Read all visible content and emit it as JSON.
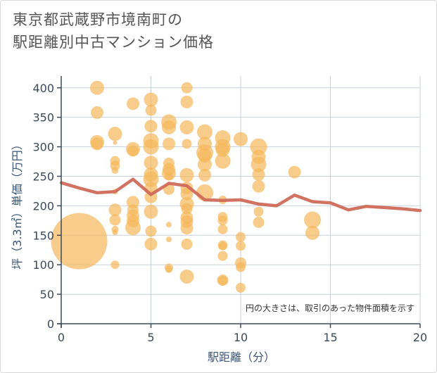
{
  "chart_data": {
    "type": "scatter",
    "title_line1": "東京都武蔵野市境南町の",
    "title_line2": "駅距離別中古マンション価格",
    "xlabel": "駅距離（分）",
    "ylabel": "坪（3.3㎡）単価（万円）",
    "note": "円の大きさは、取引のあった物件面積を示す",
    "xlim": [
      0,
      20
    ],
    "ylim": [
      0,
      420
    ],
    "xticks": [
      0,
      5,
      10,
      15,
      20
    ],
    "yticks": [
      0,
      50,
      100,
      150,
      200,
      250,
      300,
      350,
      400
    ],
    "grid": true,
    "colors": {
      "bubble": "#f5b85a",
      "line": "#d06a5a",
      "grid": "#c8d2de",
      "axis": "#3c4a5a"
    },
    "bubbles": [
      {
        "x": 1,
        "y": 140,
        "s": 40
      },
      {
        "x": 2,
        "y": 400,
        "s": 10
      },
      {
        "x": 2,
        "y": 358,
        "s": 9
      },
      {
        "x": 2,
        "y": 308,
        "s": 10
      },
      {
        "x": 2,
        "y": 305,
        "s": 9
      },
      {
        "x": 3,
        "y": 322,
        "s": 10
      },
      {
        "x": 3,
        "y": 307,
        "s": 3
      },
      {
        "x": 3,
        "y": 276,
        "s": 7
      },
      {
        "x": 3,
        "y": 268,
        "s": 7
      },
      {
        "x": 3,
        "y": 260,
        "s": 5
      },
      {
        "x": 3,
        "y": 224,
        "s": 4
      },
      {
        "x": 3,
        "y": 193,
        "s": 9
      },
      {
        "x": 3,
        "y": 176,
        "s": 8
      },
      {
        "x": 3,
        "y": 160,
        "s": 5
      },
      {
        "x": 3,
        "y": 155,
        "s": 4
      },
      {
        "x": 3,
        "y": 100,
        "s": 6
      },
      {
        "x": 4,
        "y": 373,
        "s": 9
      },
      {
        "x": 4,
        "y": 296,
        "s": 10
      },
      {
        "x": 4,
        "y": 293,
        "s": 8
      },
      {
        "x": 4,
        "y": 206,
        "s": 9
      },
      {
        "x": 4,
        "y": 193,
        "s": 8
      },
      {
        "x": 4,
        "y": 183,
        "s": 9
      },
      {
        "x": 4,
        "y": 174,
        "s": 9
      },
      {
        "x": 4,
        "y": 163,
        "s": 11
      },
      {
        "x": 5,
        "y": 380,
        "s": 10
      },
      {
        "x": 5,
        "y": 362,
        "s": 8
      },
      {
        "x": 5,
        "y": 335,
        "s": 9
      },
      {
        "x": 5,
        "y": 310,
        "s": 11
      },
      {
        "x": 5,
        "y": 300,
        "s": 11
      },
      {
        "x": 5,
        "y": 273,
        "s": 10
      },
      {
        "x": 5,
        "y": 253,
        "s": 10
      },
      {
        "x": 5,
        "y": 245,
        "s": 11
      },
      {
        "x": 5,
        "y": 230,
        "s": 9
      },
      {
        "x": 5,
        "y": 215,
        "s": 9
      },
      {
        "x": 5,
        "y": 190,
        "s": 10
      },
      {
        "x": 5,
        "y": 157,
        "s": 8
      },
      {
        "x": 5,
        "y": 135,
        "s": 9
      },
      {
        "x": 6,
        "y": 342,
        "s": 11
      },
      {
        "x": 6,
        "y": 333,
        "s": 10
      },
      {
        "x": 6,
        "y": 305,
        "s": 9
      },
      {
        "x": 6,
        "y": 272,
        "s": 8
      },
      {
        "x": 6,
        "y": 262,
        "s": 9
      },
      {
        "x": 6,
        "y": 255,
        "s": 10
      },
      {
        "x": 6,
        "y": 250,
        "s": 6
      },
      {
        "x": 6,
        "y": 228,
        "s": 8
      },
      {
        "x": 6,
        "y": 168,
        "s": 4
      },
      {
        "x": 6,
        "y": 143,
        "s": 4
      },
      {
        "x": 6,
        "y": 95,
        "s": 6
      },
      {
        "x": 6,
        "y": 92,
        "s": 5
      },
      {
        "x": 7,
        "y": 400,
        "s": 8
      },
      {
        "x": 7,
        "y": 376,
        "s": 9
      },
      {
        "x": 7,
        "y": 333,
        "s": 10
      },
      {
        "x": 7,
        "y": 305,
        "s": 7
      },
      {
        "x": 7,
        "y": 252,
        "s": 10
      },
      {
        "x": 7,
        "y": 230,
        "s": 9
      },
      {
        "x": 7,
        "y": 220,
        "s": 9
      },
      {
        "x": 7,
        "y": 203,
        "s": 10
      },
      {
        "x": 7,
        "y": 195,
        "s": 8
      },
      {
        "x": 7,
        "y": 180,
        "s": 9
      },
      {
        "x": 7,
        "y": 173,
        "s": 9
      },
      {
        "x": 7,
        "y": 162,
        "s": 9
      },
      {
        "x": 7,
        "y": 135,
        "s": 8
      },
      {
        "x": 7,
        "y": 80,
        "s": 10
      },
      {
        "x": 8,
        "y": 325,
        "s": 11
      },
      {
        "x": 8,
        "y": 305,
        "s": 10
      },
      {
        "x": 8,
        "y": 290,
        "s": 12
      },
      {
        "x": 8,
        "y": 285,
        "s": 10
      },
      {
        "x": 8,
        "y": 270,
        "s": 10
      },
      {
        "x": 8,
        "y": 252,
        "s": 9
      },
      {
        "x": 8,
        "y": 222,
        "s": 12
      },
      {
        "x": 9,
        "y": 315,
        "s": 11
      },
      {
        "x": 9,
        "y": 300,
        "s": 11
      },
      {
        "x": 9,
        "y": 295,
        "s": 10
      },
      {
        "x": 9,
        "y": 276,
        "s": 11
      },
      {
        "x": 9,
        "y": 210,
        "s": 6
      },
      {
        "x": 9,
        "y": 181,
        "s": 7
      },
      {
        "x": 9,
        "y": 175,
        "s": 7
      },
      {
        "x": 9,
        "y": 160,
        "s": 7
      },
      {
        "x": 9,
        "y": 133,
        "s": 7
      },
      {
        "x": 9,
        "y": 132,
        "s": 6
      },
      {
        "x": 9,
        "y": 115,
        "s": 7
      },
      {
        "x": 9,
        "y": 74,
        "s": 8
      },
      {
        "x": 9,
        "y": 73,
        "s": 7
      },
      {
        "x": 10,
        "y": 313,
        "s": 10
      },
      {
        "x": 10,
        "y": 147,
        "s": 7
      },
      {
        "x": 10,
        "y": 132,
        "s": 7
      },
      {
        "x": 10,
        "y": 103,
        "s": 8
      },
      {
        "x": 10,
        "y": 96,
        "s": 7
      },
      {
        "x": 10,
        "y": 61,
        "s": 7
      },
      {
        "x": 11,
        "y": 300,
        "s": 12
      },
      {
        "x": 11,
        "y": 283,
        "s": 10
      },
      {
        "x": 11,
        "y": 270,
        "s": 11
      },
      {
        "x": 11,
        "y": 253,
        "s": 9
      },
      {
        "x": 11,
        "y": 233,
        "s": 9
      },
      {
        "x": 11,
        "y": 190,
        "s": 7
      },
      {
        "x": 11,
        "y": 172,
        "s": 8
      },
      {
        "x": 13,
        "y": 257,
        "s": 9
      },
      {
        "x": 14,
        "y": 176,
        "s": 12
      },
      {
        "x": 14,
        "y": 154,
        "s": 10
      }
    ],
    "series": [
      {
        "x": [
          0,
          1,
          2,
          3,
          4,
          5,
          6,
          7,
          8,
          9,
          10,
          11,
          12,
          13,
          14,
          15,
          16,
          17,
          18,
          19,
          20
        ],
        "values": [
          239,
          230,
          222,
          224,
          245,
          219,
          238,
          234,
          210,
          209,
          210,
          203,
          200,
          218,
          207,
          205,
          193,
          199,
          197,
          195,
          192
        ]
      }
    ]
  }
}
